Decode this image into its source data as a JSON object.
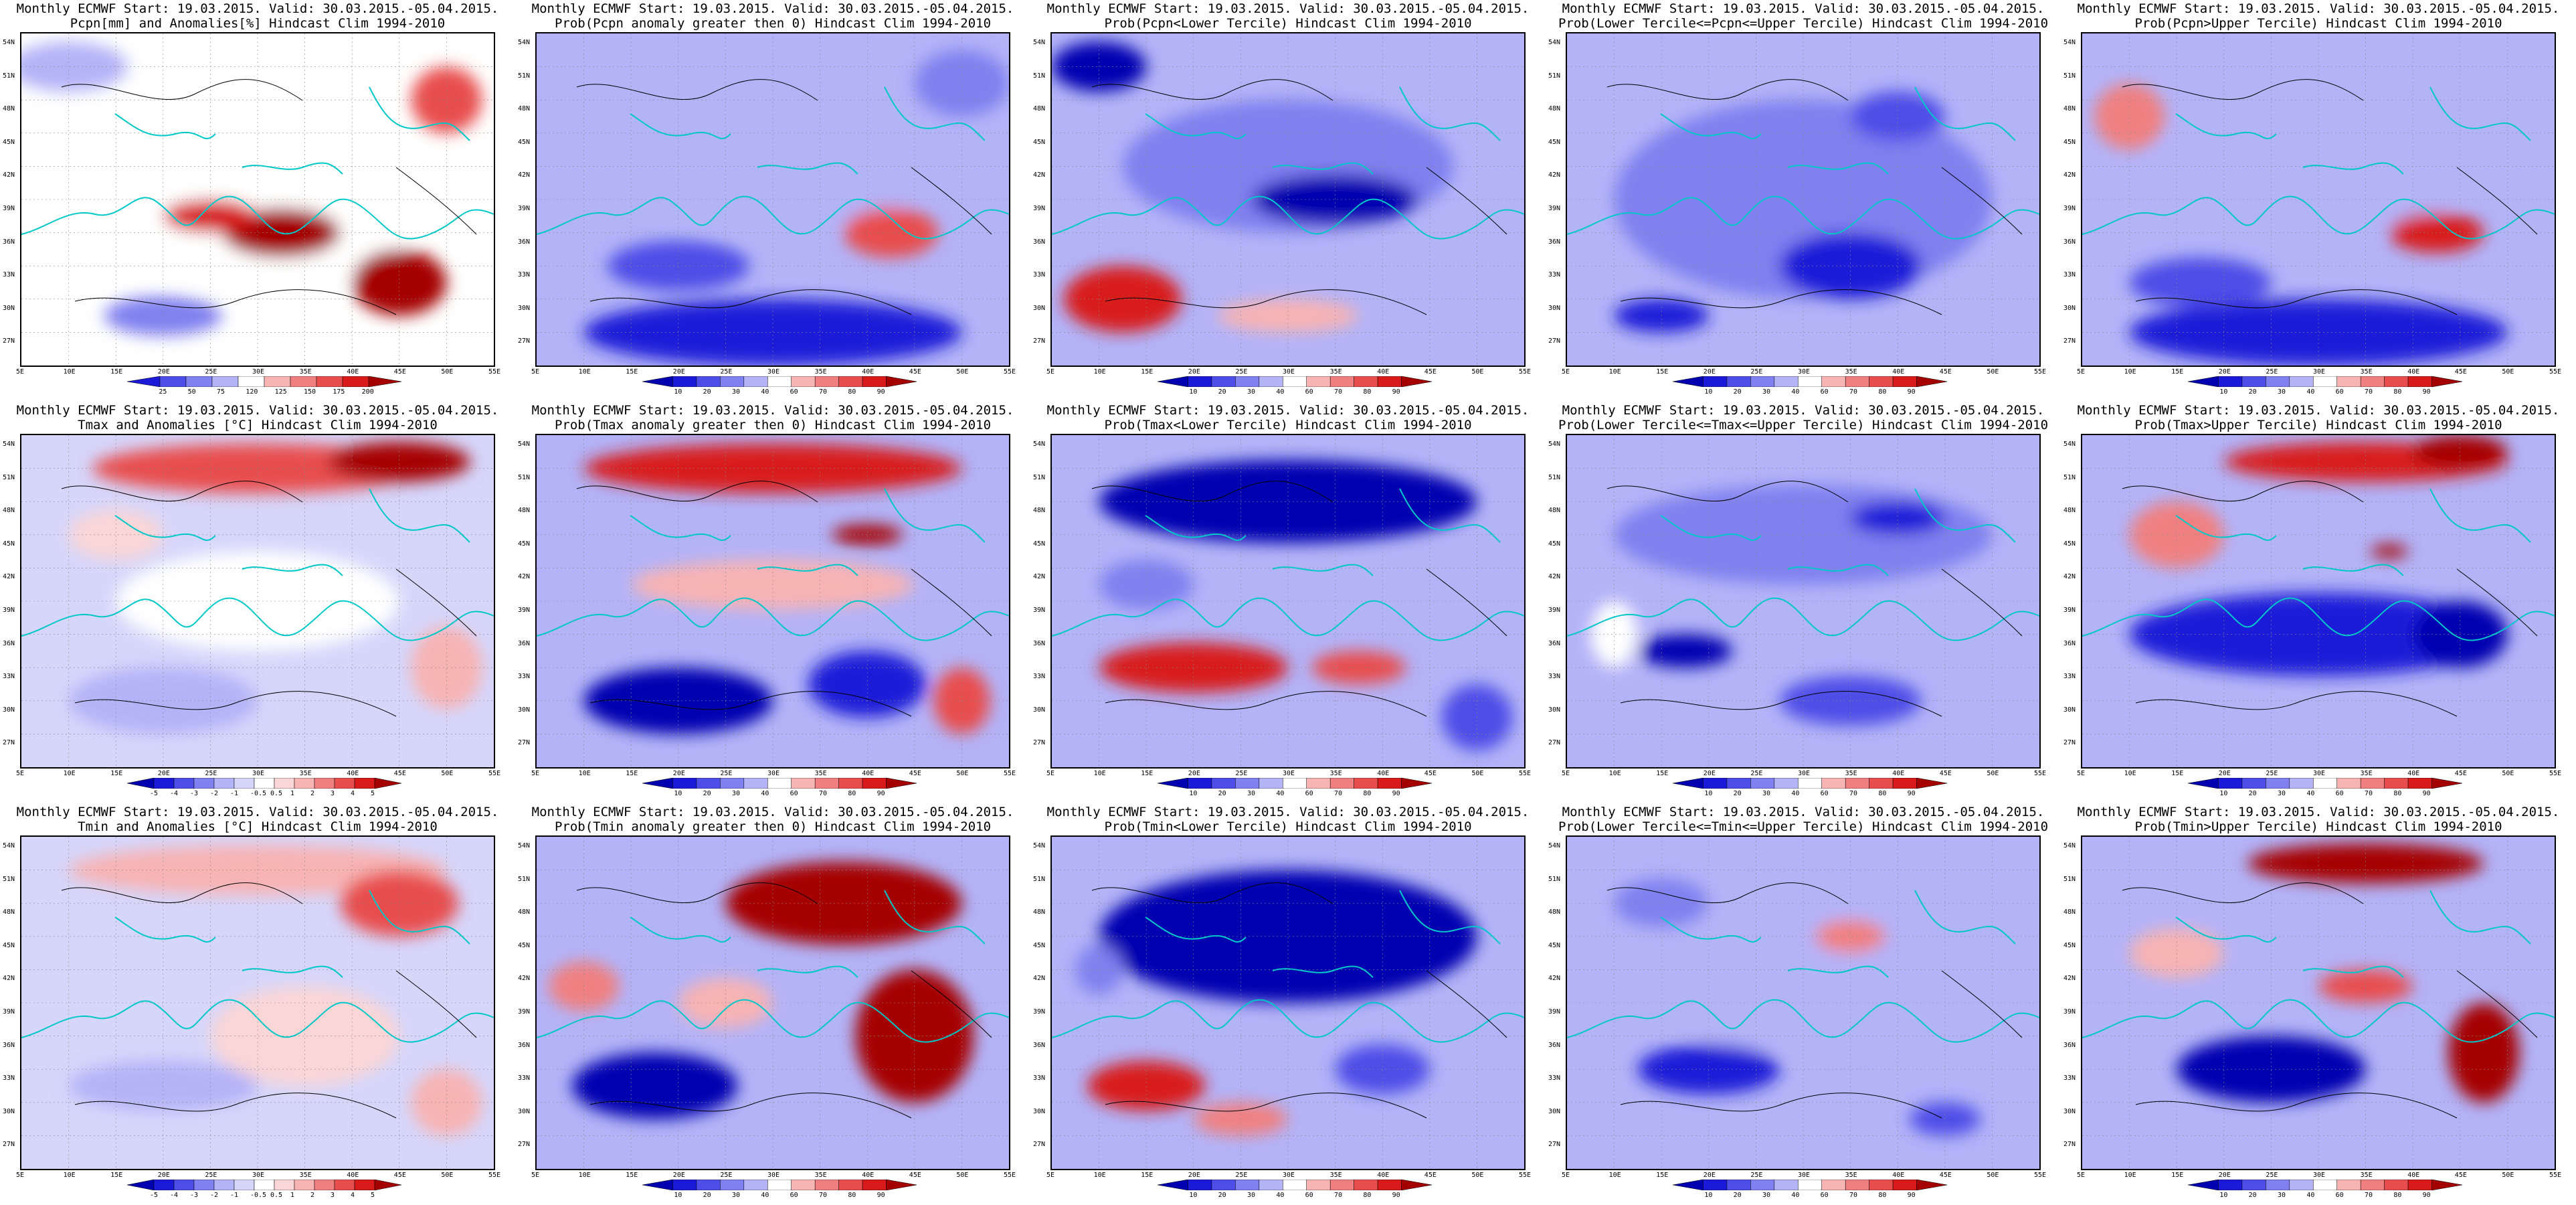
{
  "map_extent": {
    "lon_min": 5,
    "lon_max": 55,
    "lat_min": 25,
    "lat_max": 55
  },
  "lon_labels": [
    "5E",
    "10E",
    "15E",
    "20E",
    "25E",
    "30E",
    "35E",
    "40E",
    "45E",
    "50E",
    "55E"
  ],
  "lat_labels": [
    "54N",
    "51N",
    "48N",
    "45N",
    "42N",
    "39N",
    "36N",
    "33N",
    "30N",
    "27N"
  ],
  "colors": {
    "deep_blue": "#0000d0",
    "white": "#ffffff",
    "deep_red": "#a50000",
    "coast": "#00c8c8",
    "contour": "#000000"
  },
  "colorbars": {
    "pcpn_anom": {
      "ticks": [
        "25",
        "50",
        "75",
        "120",
        "125",
        "150",
        "175",
        "200"
      ],
      "colors": [
        "#1a1ad8",
        "#4d4de8",
        "#8080f0",
        "#b3b3f8",
        "#ffffff",
        "#f8b3b3",
        "#f08080",
        "#e84d4d",
        "#d81a1a",
        "#a50000"
      ]
    },
    "temp_anom": {
      "ticks": [
        "-5",
        "-4",
        "-3",
        "-2",
        "-1",
        "-0.5",
        "0.5",
        "1",
        "2",
        "3",
        "4",
        "5"
      ],
      "colors": [
        "#0000b0",
        "#1a1ad8",
        "#4d4de8",
        "#8080f0",
        "#b3b3f8",
        "#d6d6fb",
        "#ffffff",
        "#fbd6d6",
        "#f8b3b3",
        "#f08080",
        "#e84d4d",
        "#d81a1a",
        "#a50000"
      ]
    },
    "prob": {
      "ticks": [
        "10",
        "20",
        "30",
        "40",
        "60",
        "70",
        "80",
        "90"
      ],
      "colors": [
        "#0000b0",
        "#1a1ad8",
        "#4d4de8",
        "#8080f0",
        "#b3b3f8",
        "#ffffff",
        "#f8b3b3",
        "#f08080",
        "#e84d4d",
        "#d81a1a",
        "#a50000"
      ]
    }
  },
  "panels": [
    {
      "title1": "Monthly ECMWF Start: 19.03.2015. Valid: 30.03.2015.-05.04.2015.",
      "title2": "Pcpn[mm] and Anomalies[%] Hindcast Clim 1994-2010",
      "scale": "pcpn_anom",
      "pattern": "pcpn_anom"
    },
    {
      "title1": "Monthly ECMWF Start: 19.03.2015. Valid: 30.03.2015.-05.04.2015.",
      "title2": "Prob(Pcpn anomaly greater then 0) Hindcast Clim 1994-2010",
      "scale": "prob",
      "pattern": "pcpn_pos"
    },
    {
      "title1": "Monthly ECMWF Start: 19.03.2015. Valid: 30.03.2015.-05.04.2015.",
      "title2": "Prob(Pcpn<Lower Tercile) Hindcast Clim 1994-2010",
      "scale": "prob",
      "pattern": "pcpn_low"
    },
    {
      "title1": "Monthly ECMWF Start: 19.03.2015. Valid: 30.03.2015.-05.04.2015.",
      "title2": "Prob(Lower Tercile<=Pcpn<=Upper Tercile) Hindcast Clim 1994-2010",
      "scale": "prob",
      "pattern": "pcpn_mid"
    },
    {
      "title1": "Monthly ECMWF Start: 19.03.2015. Valid: 30.03.2015.-05.04.2015.",
      "title2": "Prob(Pcpn>Upper Tercile) Hindcast Clim 1994-2010",
      "scale": "prob",
      "pattern": "pcpn_up"
    },
    {
      "title1": "Monthly ECMWF Start: 19.03.2015. Valid: 30.03.2015.-05.04.2015.",
      "title2": "Tmax and Anomalies [°C] Hindcast Clim 1994-2010",
      "scale": "temp_anom",
      "pattern": "tmax_anom"
    },
    {
      "title1": "Monthly ECMWF Start: 19.03.2015. Valid: 30.03.2015.-05.04.2015.",
      "title2": "Prob(Tmax anomaly greater then 0) Hindcast Clim 1994-2010",
      "scale": "prob",
      "pattern": "tmax_pos"
    },
    {
      "title1": "Monthly ECMWF Start: 19.03.2015. Valid: 30.03.2015.-05.04.2015.",
      "title2": "Prob(Tmax<Lower Tercile) Hindcast Clim 1994-2010",
      "scale": "prob",
      "pattern": "tmax_low"
    },
    {
      "title1": "Monthly ECMWF Start: 19.03.2015. Valid: 30.03.2015.-05.04.2015.",
      "title2": "Prob(Lower Tercile<=Tmax<=Upper Tercile) Hindcast Clim 1994-2010",
      "scale": "prob",
      "pattern": "tmax_mid"
    },
    {
      "title1": "Monthly ECMWF Start: 19.03.2015. Valid: 30.03.2015.-05.04.2015.",
      "title2": "Prob(Tmax>Upper Tercile) Hindcast Clim 1994-2010",
      "scale": "prob",
      "pattern": "tmax_up"
    },
    {
      "title1": "Monthly ECMWF Start: 19.03.2015. Valid: 30.03.2015.-05.04.2015.",
      "title2": "Tmin and Anomalies [°C] Hindcast Clim 1994-2010",
      "scale": "temp_anom",
      "pattern": "tmin_anom"
    },
    {
      "title1": "Monthly ECMWF Start: 19.03.2015. Valid: 30.03.2015.-05.04.2015.",
      "title2": "Prob(Tmin anomaly greater then 0) Hindcast Clim 1994-2010",
      "scale": "prob",
      "pattern": "tmin_pos"
    },
    {
      "title1": "Monthly ECMWF Start: 19.03.2015. Valid: 30.03.2015.-05.04.2015.",
      "title2": "Prob(Tmin<Lower Tercile) Hindcast Clim 1994-2010",
      "scale": "prob",
      "pattern": "tmin_low"
    },
    {
      "title1": "Monthly ECMWF Start: 19.03.2015. Valid: 30.03.2015.-05.04.2015.",
      "title2": "Prob(Lower Tercile<=Tmin<=Upper Tercile) Hindcast Clim 1994-2010",
      "scale": "prob",
      "pattern": "tmin_mid"
    },
    {
      "title1": "Monthly ECMWF Start: 19.03.2015. Valid: 30.03.2015.-05.04.2015.",
      "title2": "Prob(Tmin>Upper Tercile) Hindcast Clim 1994-2010",
      "scale": "prob",
      "pattern": "tmin_up"
    }
  ]
}
